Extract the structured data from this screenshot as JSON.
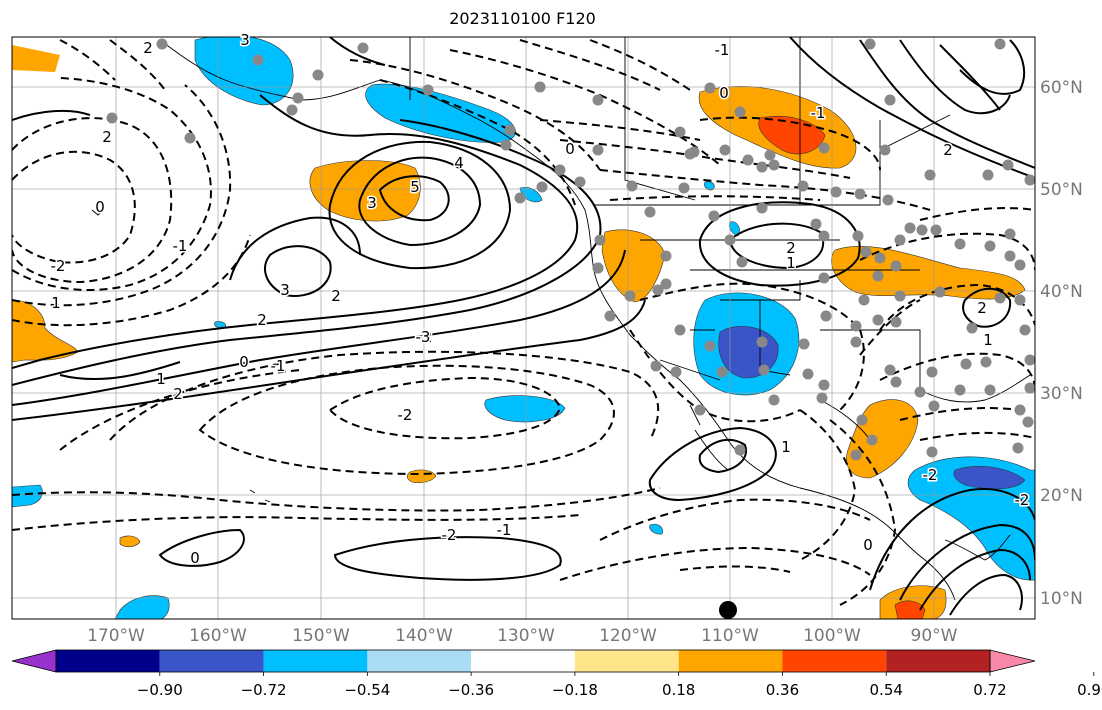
{
  "title": "2023110100 F120",
  "lon_labels": [
    "170°W",
    "160°W",
    "150°W",
    "140°W",
    "130°W",
    "120°W",
    "110°W",
    "100°W",
    "90°W"
  ],
  "lat_labels": [
    "60°N",
    "50°N",
    "40°N",
    "30°N",
    "20°N",
    "10°N"
  ],
  "colorbar": {
    "tick_labels": [
      "−0.90",
      "−0.72",
      "−0.54",
      "−0.36",
      "−0.18",
      "0.18",
      "0.36",
      "0.54",
      "0.72",
      "0.90"
    ],
    "colors": [
      "#9932cc",
      "#00008b",
      "#3a55c8",
      "#00bfff",
      "#aadcf5",
      "#ffffff",
      "#ffe58a",
      "#ffa500",
      "#ff4500",
      "#b22222",
      "#f788a8"
    ]
  },
  "contour_labels": [
    "2",
    "3",
    "2",
    "-2",
    "-1",
    "0",
    "1",
    "2",
    "3",
    "4",
    "5",
    "3",
    "2",
    "-2",
    "-1",
    "0",
    "1",
    "2",
    "-2",
    "-3",
    "-2",
    "-1",
    "0",
    "1",
    "0",
    "-1",
    "2",
    "1",
    "2",
    "-2",
    "1",
    "2",
    "-2",
    "0",
    "0",
    "-1"
  ],
  "marker": "black-dot"
}
